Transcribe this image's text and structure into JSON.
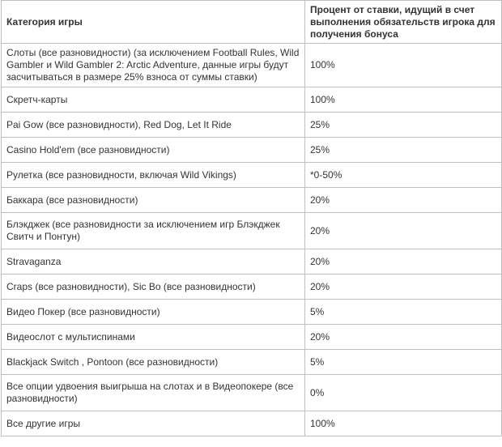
{
  "table": {
    "headers": [
      "Категория игры",
      "Процент от ставки,  идущий в счет выполнения обязательств игрока для получения бонуса"
    ],
    "rows": [
      {
        "game": "Слоты (все разновидности) (за исключением Football Rules, Wild Gambler и Wild Gambler 2: Arctic Adventure, данные игры будут засчитываться в размере 25% взноса от суммы ставки)",
        "percent": "100%"
      },
      {
        "game": "Скретч-карты",
        "percent": "100%"
      },
      {
        "game": "Pai Gow (все разновидности), Red Dog, Let  It Ride",
        "percent": "25%"
      },
      {
        "game": "Casino Hold'em (все разновидности)",
        "percent": "25%"
      },
      {
        "game": "Рулетка (все разновидности, включая Wild Vikings)",
        "percent": "*0-50%"
      },
      {
        "game": "Баккара (все разновидности)",
        "percent": "20%"
      },
      {
        "game": "Блэкджек (все разновидности за исключением игр Блэкджек Свитч и Понтун)",
        "percent": "20%"
      },
      {
        "game": "Stravaganza",
        "percent": "20%"
      },
      {
        "game": "Craps (все разновидности),  Sic Bo (все разновидности)",
        "percent": "20%"
      },
      {
        "game": "Видео Покер (все разновидности)",
        "percent": "5%"
      },
      {
        "game": "Видеослот с мультиспинами",
        "percent": "20%"
      },
      {
        "game": "Blackjack Switch , Pontoon (все разновидности)",
        "percent": "5%"
      },
      {
        "game": "Все опции удвоения выигрыша на слотах и в Видеопокере (все разновидности)",
        "percent": "0%"
      },
      {
        "game": "Все другие игры",
        "percent": "100%"
      }
    ]
  }
}
